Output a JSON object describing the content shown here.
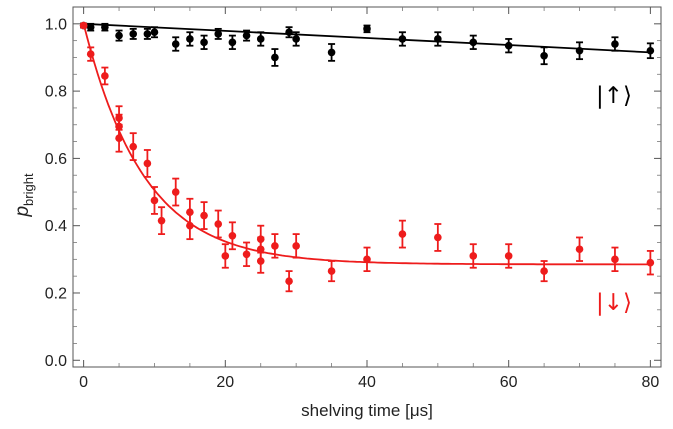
{
  "chart_data": {
    "type": "scatter",
    "xlabel": "shelving time [μs]",
    "ylabel": {
      "main": "p",
      "subscript": "bright"
    },
    "xlim": [
      -1.5,
      81.5
    ],
    "ylim": [
      -0.02,
      1.05
    ],
    "x_ticks": [
      0,
      20,
      40,
      60,
      80
    ],
    "y_ticks": [
      0.0,
      0.2,
      0.4,
      0.6,
      0.8,
      1.0
    ],
    "y_tick_labels": [
      "0.0",
      "0.2",
      "0.4",
      "0.6",
      "0.8",
      "1.0"
    ],
    "grid": false,
    "series": [
      {
        "name": "|↑⟩",
        "color": "#000000",
        "points": [
          {
            "x": 0,
            "y": 0.995,
            "err": 0.006
          },
          {
            "x": 1,
            "y": 0.99,
            "err": 0.01
          },
          {
            "x": 3,
            "y": 0.99,
            "err": 0.01
          },
          {
            "x": 5,
            "y": 0.965,
            "err": 0.015
          },
          {
            "x": 7,
            "y": 0.97,
            "err": 0.015
          },
          {
            "x": 9,
            "y": 0.97,
            "err": 0.015
          },
          {
            "x": 10,
            "y": 0.975,
            "err": 0.015
          },
          {
            "x": 13,
            "y": 0.94,
            "err": 0.02
          },
          {
            "x": 15,
            "y": 0.955,
            "err": 0.02
          },
          {
            "x": 17,
            "y": 0.945,
            "err": 0.02
          },
          {
            "x": 19,
            "y": 0.97,
            "err": 0.015
          },
          {
            "x": 21,
            "y": 0.945,
            "err": 0.02
          },
          {
            "x": 23,
            "y": 0.965,
            "err": 0.015
          },
          {
            "x": 25,
            "y": 0.955,
            "err": 0.02
          },
          {
            "x": 27,
            "y": 0.9,
            "err": 0.025
          },
          {
            "x": 29,
            "y": 0.975,
            "err": 0.015
          },
          {
            "x": 30,
            "y": 0.955,
            "err": 0.02
          },
          {
            "x": 35,
            "y": 0.915,
            "err": 0.025
          },
          {
            "x": 40,
            "y": 0.985,
            "err": 0.01
          },
          {
            "x": 45,
            "y": 0.955,
            "err": 0.02
          },
          {
            "x": 50,
            "y": 0.955,
            "err": 0.02
          },
          {
            "x": 55,
            "y": 0.945,
            "err": 0.02
          },
          {
            "x": 60,
            "y": 0.935,
            "err": 0.02
          },
          {
            "x": 65,
            "y": 0.905,
            "err": 0.025
          },
          {
            "x": 70,
            "y": 0.92,
            "err": 0.025
          },
          {
            "x": 75,
            "y": 0.94,
            "err": 0.02
          },
          {
            "x": 80,
            "y": 0.92,
            "err": 0.022
          }
        ],
        "fit": [
          [
            0,
            1.0
          ],
          [
            20,
            0.979
          ],
          [
            40,
            0.958
          ],
          [
            60,
            0.937
          ],
          [
            80,
            0.915
          ]
        ]
      },
      {
        "name": "|↓⟩",
        "color": "#ee1c1c",
        "points": [
          {
            "x": 0,
            "y": 0.995,
            "err": 0.005
          },
          {
            "x": 1,
            "y": 0.91,
            "err": 0.02
          },
          {
            "x": 3,
            "y": 0.845,
            "err": 0.025
          },
          {
            "x": 5,
            "y": 0.72,
            "err": 0.035
          },
          {
            "x": 5,
            "y": 0.695,
            "err": 0.035
          },
          {
            "x": 5,
            "y": 0.66,
            "err": 0.04
          },
          {
            "x": 7,
            "y": 0.635,
            "err": 0.04
          },
          {
            "x": 9,
            "y": 0.585,
            "err": 0.04
          },
          {
            "x": 10,
            "y": 0.475,
            "err": 0.04
          },
          {
            "x": 11,
            "y": 0.415,
            "err": 0.04
          },
          {
            "x": 13,
            "y": 0.5,
            "err": 0.04
          },
          {
            "x": 15,
            "y": 0.44,
            "err": 0.04
          },
          {
            "x": 15,
            "y": 0.4,
            "err": 0.04
          },
          {
            "x": 17,
            "y": 0.43,
            "err": 0.04
          },
          {
            "x": 19,
            "y": 0.405,
            "err": 0.04
          },
          {
            "x": 20,
            "y": 0.31,
            "err": 0.035
          },
          {
            "x": 21,
            "y": 0.37,
            "err": 0.04
          },
          {
            "x": 23,
            "y": 0.315,
            "err": 0.035
          },
          {
            "x": 25,
            "y": 0.36,
            "err": 0.04
          },
          {
            "x": 25,
            "y": 0.33,
            "err": 0.035
          },
          {
            "x": 25,
            "y": 0.295,
            "err": 0.035
          },
          {
            "x": 27,
            "y": 0.34,
            "err": 0.035
          },
          {
            "x": 29,
            "y": 0.235,
            "err": 0.03
          },
          {
            "x": 30,
            "y": 0.34,
            "err": 0.035
          },
          {
            "x": 35,
            "y": 0.265,
            "err": 0.03
          },
          {
            "x": 40,
            "y": 0.3,
            "err": 0.035
          },
          {
            "x": 45,
            "y": 0.375,
            "err": 0.04
          },
          {
            "x": 50,
            "y": 0.365,
            "err": 0.04
          },
          {
            "x": 55,
            "y": 0.31,
            "err": 0.035
          },
          {
            "x": 60,
            "y": 0.31,
            "err": 0.035
          },
          {
            "x": 65,
            "y": 0.265,
            "err": 0.03
          },
          {
            "x": 70,
            "y": 0.33,
            "err": 0.035
          },
          {
            "x": 75,
            "y": 0.3,
            "err": 0.035
          },
          {
            "x": 80,
            "y": 0.29,
            "err": 0.035
          }
        ],
        "fit_model": {
          "plateau": 0.285,
          "amplitude": 0.715,
          "tau": 8.5
        }
      }
    ]
  }
}
